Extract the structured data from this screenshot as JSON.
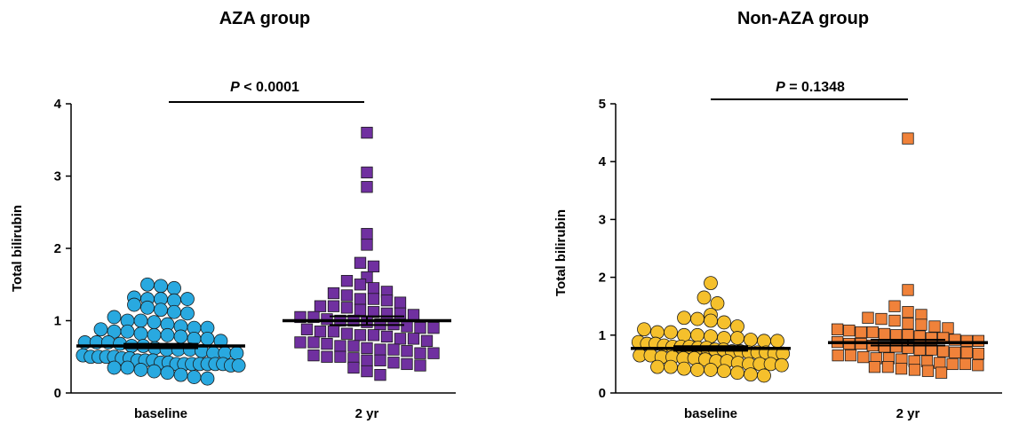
{
  "chart_data": [
    {
      "type": "scatter",
      "title": "AZA group",
      "ylabel": "Total bilirubin",
      "ylim": [
        0,
        4
      ],
      "yticks": [
        0,
        1,
        2,
        3,
        4
      ],
      "categories": [
        "baseline",
        "2 yr"
      ],
      "annotation": {
        "p_label": "P",
        "p_text": " < 0.0001"
      },
      "series": [
        {
          "category": "baseline",
          "marker": "circle",
          "color": "#29a9e0",
          "mean": 0.65,
          "sem": 0.03,
          "values": [
            1.5,
            1.48,
            1.45,
            1.32,
            1.3,
            1.3,
            1.28,
            1.3,
            1.22,
            1.18,
            1.15,
            1.12,
            1.1,
            1.05,
            1.0,
            1.0,
            0.98,
            0.95,
            0.92,
            0.9,
            0.9,
            0.88,
            0.85,
            0.85,
            0.82,
            0.8,
            0.8,
            0.78,
            0.75,
            0.75,
            0.72,
            0.7,
            0.7,
            0.7,
            0.68,
            0.65,
            0.65,
            0.62,
            0.6,
            0.6,
            0.6,
            0.58,
            0.55,
            0.55,
            0.55,
            0.52,
            0.5,
            0.5,
            0.5,
            0.5,
            0.48,
            0.48,
            0.45,
            0.45,
            0.45,
            0.42,
            0.42,
            0.4,
            0.4,
            0.4,
            0.4,
            0.4,
            0.4,
            0.4,
            0.38,
            0.38,
            0.35,
            0.35,
            0.32,
            0.3,
            0.28,
            0.25,
            0.22,
            0.2
          ]
        },
        {
          "category": "2 yr",
          "marker": "square",
          "color": "#7030a0",
          "mean": 1.0,
          "sem": 0.06,
          "values": [
            3.6,
            3.05,
            2.85,
            2.2,
            2.05,
            1.8,
            1.75,
            1.6,
            1.55,
            1.5,
            1.45,
            1.4,
            1.38,
            1.35,
            1.3,
            1.3,
            1.28,
            1.25,
            1.2,
            1.2,
            1.18,
            1.15,
            1.12,
            1.1,
            1.1,
            1.08,
            1.05,
            1.05,
            1.02,
            1.0,
            1.0,
            0.98,
            0.95,
            0.95,
            0.92,
            0.9,
            0.9,
            0.88,
            0.85,
            0.85,
            0.82,
            0.8,
            0.8,
            0.78,
            0.75,
            0.75,
            0.72,
            0.7,
            0.7,
            0.68,
            0.65,
            0.65,
            0.62,
            0.6,
            0.6,
            0.58,
            0.55,
            0.55,
            0.52,
            0.5,
            0.5,
            0.48,
            0.45,
            0.45,
            0.42,
            0.4,
            0.38,
            0.35,
            0.3,
            0.25
          ]
        }
      ]
    },
    {
      "type": "scatter",
      "title": "Non-AZA group",
      "ylabel": "Total bilirubin",
      "ylim": [
        0,
        5
      ],
      "yticks": [
        0,
        1,
        2,
        3,
        4,
        5
      ],
      "categories": [
        "baseline",
        "2 yr"
      ],
      "annotation": {
        "p_label": "P",
        "p_text": " = 0.1348"
      },
      "series": [
        {
          "category": "baseline",
          "marker": "circle",
          "color": "#f5c02c",
          "mean": 0.77,
          "sem": 0.04,
          "values": [
            1.9,
            1.65,
            1.55,
            1.35,
            1.3,
            1.28,
            1.25,
            1.22,
            1.15,
            1.1,
            1.05,
            1.05,
            1.0,
            1.0,
            0.98,
            0.95,
            0.95,
            0.92,
            0.9,
            0.9,
            0.88,
            0.85,
            0.85,
            0.82,
            0.8,
            0.8,
            0.8,
            0.78,
            0.78,
            0.75,
            0.75,
            0.72,
            0.72,
            0.7,
            0.7,
            0.7,
            0.68,
            0.68,
            0.65,
            0.65,
            0.62,
            0.62,
            0.6,
            0.6,
            0.58,
            0.55,
            0.55,
            0.52,
            0.5,
            0.5,
            0.5,
            0.48,
            0.45,
            0.45,
            0.42,
            0.4,
            0.4,
            0.38,
            0.35,
            0.32,
            0.3
          ]
        },
        {
          "category": "2 yr",
          "marker": "square",
          "color": "#f0823a",
          "mean": 0.87,
          "sem": 0.05,
          "values": [
            4.4,
            1.78,
            1.5,
            1.4,
            1.35,
            1.3,
            1.28,
            1.25,
            1.2,
            1.18,
            1.15,
            1.12,
            1.1,
            1.08,
            1.05,
            1.05,
            1.02,
            1.0,
            1.0,
            0.98,
            0.95,
            0.95,
            0.92,
            0.9,
            0.9,
            0.88,
            0.85,
            0.85,
            0.82,
            0.8,
            0.8,
            0.78,
            0.75,
            0.75,
            0.72,
            0.7,
            0.7,
            0.68,
            0.65,
            0.65,
            0.62,
            0.6,
            0.6,
            0.58,
            0.55,
            0.55,
            0.52,
            0.5,
            0.5,
            0.48,
            0.45,
            0.45,
            0.42,
            0.4,
            0.38,
            0.35
          ]
        }
      ]
    }
  ]
}
